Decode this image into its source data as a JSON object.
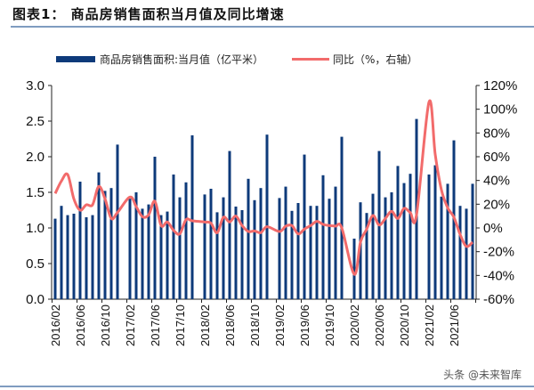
{
  "title": "图表1：   商品房销售面积当月值及同比增速",
  "watermark": "头条 @未来智库",
  "chart_data": {
    "type": "bar+line",
    "legend_position": "top",
    "colors": {
      "bars": "#0d3a7a",
      "line": "#f26b6b"
    },
    "series": [
      {
        "name": "商品房销售面积:当月值（亿平米）",
        "type": "bar",
        "axis": "left"
      },
      {
        "name": "同比（%，右轴）",
        "type": "line",
        "axis": "right"
      }
    ],
    "x": [
      "2016/02",
      "2016/03",
      "2016/04",
      "2016/05",
      "2016/06",
      "2016/07",
      "2016/08",
      "2016/09",
      "2016/10",
      "2016/11",
      "2016/12",
      "2017/02",
      "2017/03",
      "2017/04",
      "2017/05",
      "2017/06",
      "2017/07",
      "2017/08",
      "2017/09",
      "2017/10",
      "2017/11",
      "2017/12",
      "2018/02",
      "2018/03",
      "2018/04",
      "2018/05",
      "2018/06",
      "2018/07",
      "2018/08",
      "2018/09",
      "2018/10",
      "2018/11",
      "2018/12",
      "2019/02",
      "2019/03",
      "2019/04",
      "2019/05",
      "2019/06",
      "2019/07",
      "2019/08",
      "2019/09",
      "2019/10",
      "2019/11",
      "2019/12",
      "2020/02",
      "2020/03",
      "2020/04",
      "2020/05",
      "2020/06",
      "2020/07",
      "2020/08",
      "2020/09",
      "2020/10",
      "2020/11",
      "2020/12",
      "2021/02",
      "2021/03",
      "2021/04",
      "2021/05",
      "2021/06",
      "2021/07",
      "2021/08",
      "2021/09"
    ],
    "bar_values": [
      1.13,
      1.31,
      1.18,
      1.2,
      1.65,
      1.15,
      1.18,
      1.78,
      1.52,
      1.56,
      2.17,
      1.41,
      1.5,
      1.27,
      1.33,
      2.0,
      1.18,
      1.23,
      1.75,
      1.43,
      1.64,
      2.3,
      1.47,
      1.55,
      1.22,
      1.43,
      2.08,
      1.3,
      1.25,
      1.69,
      1.39,
      1.56,
      2.31,
      1.42,
      1.58,
      1.24,
      1.35,
      2.03,
      1.31,
      1.31,
      1.74,
      1.41,
      1.58,
      2.28,
      0.85,
      1.36,
      1.21,
      1.48,
      2.08,
      1.43,
      1.5,
      1.87,
      1.63,
      1.76,
      2.53,
      1.75,
      1.88,
      1.44,
      1.62,
      2.23,
      1.31,
      1.27,
      1.62
    ],
    "line_values": [
      29,
      39.5,
      45,
      24.5,
      15,
      19.5,
      19.5,
      35,
      24.5,
      8,
      13,
      26,
      18,
      9.5,
      11,
      22.5,
      2,
      5,
      -2,
      -5,
      7,
      6,
      5,
      4,
      -4,
      9,
      5,
      10,
      2,
      -3,
      -2.5,
      -4,
      1,
      -3,
      1.5,
      2,
      -5,
      -1,
      2,
      5.5,
      3,
      2,
      1.5,
      0,
      -39,
      -12,
      -1,
      10.5,
      2.5,
      8,
      14,
      8,
      16.5,
      13,
      11,
      106,
      62,
      32,
      17,
      9,
      -5.5,
      -15.5,
      -12
    ],
    "left_axis": {
      "min": 0,
      "max": 3.0,
      "ticks": [
        "0.0",
        "0.5",
        "1.0",
        "1.5",
        "2.0",
        "2.5",
        "3.0"
      ]
    },
    "right_axis": {
      "min": -60,
      "max": 120,
      "ticks": [
        "-60%",
        "-40%",
        "-20%",
        "0%",
        "20%",
        "40%",
        "60%",
        "80%",
        "100%",
        "120%"
      ]
    },
    "x_tick_labels": [
      "2016/02",
      "2016/06",
      "2016/10",
      "2017/02",
      "2017/06",
      "2017/10",
      "2018/02",
      "2018/06",
      "2018/10",
      "2019/02",
      "2019/06",
      "2019/10",
      "2020/02",
      "2020/06",
      "2020/10",
      "2021/02",
      "2021/06"
    ],
    "grid": false
  }
}
